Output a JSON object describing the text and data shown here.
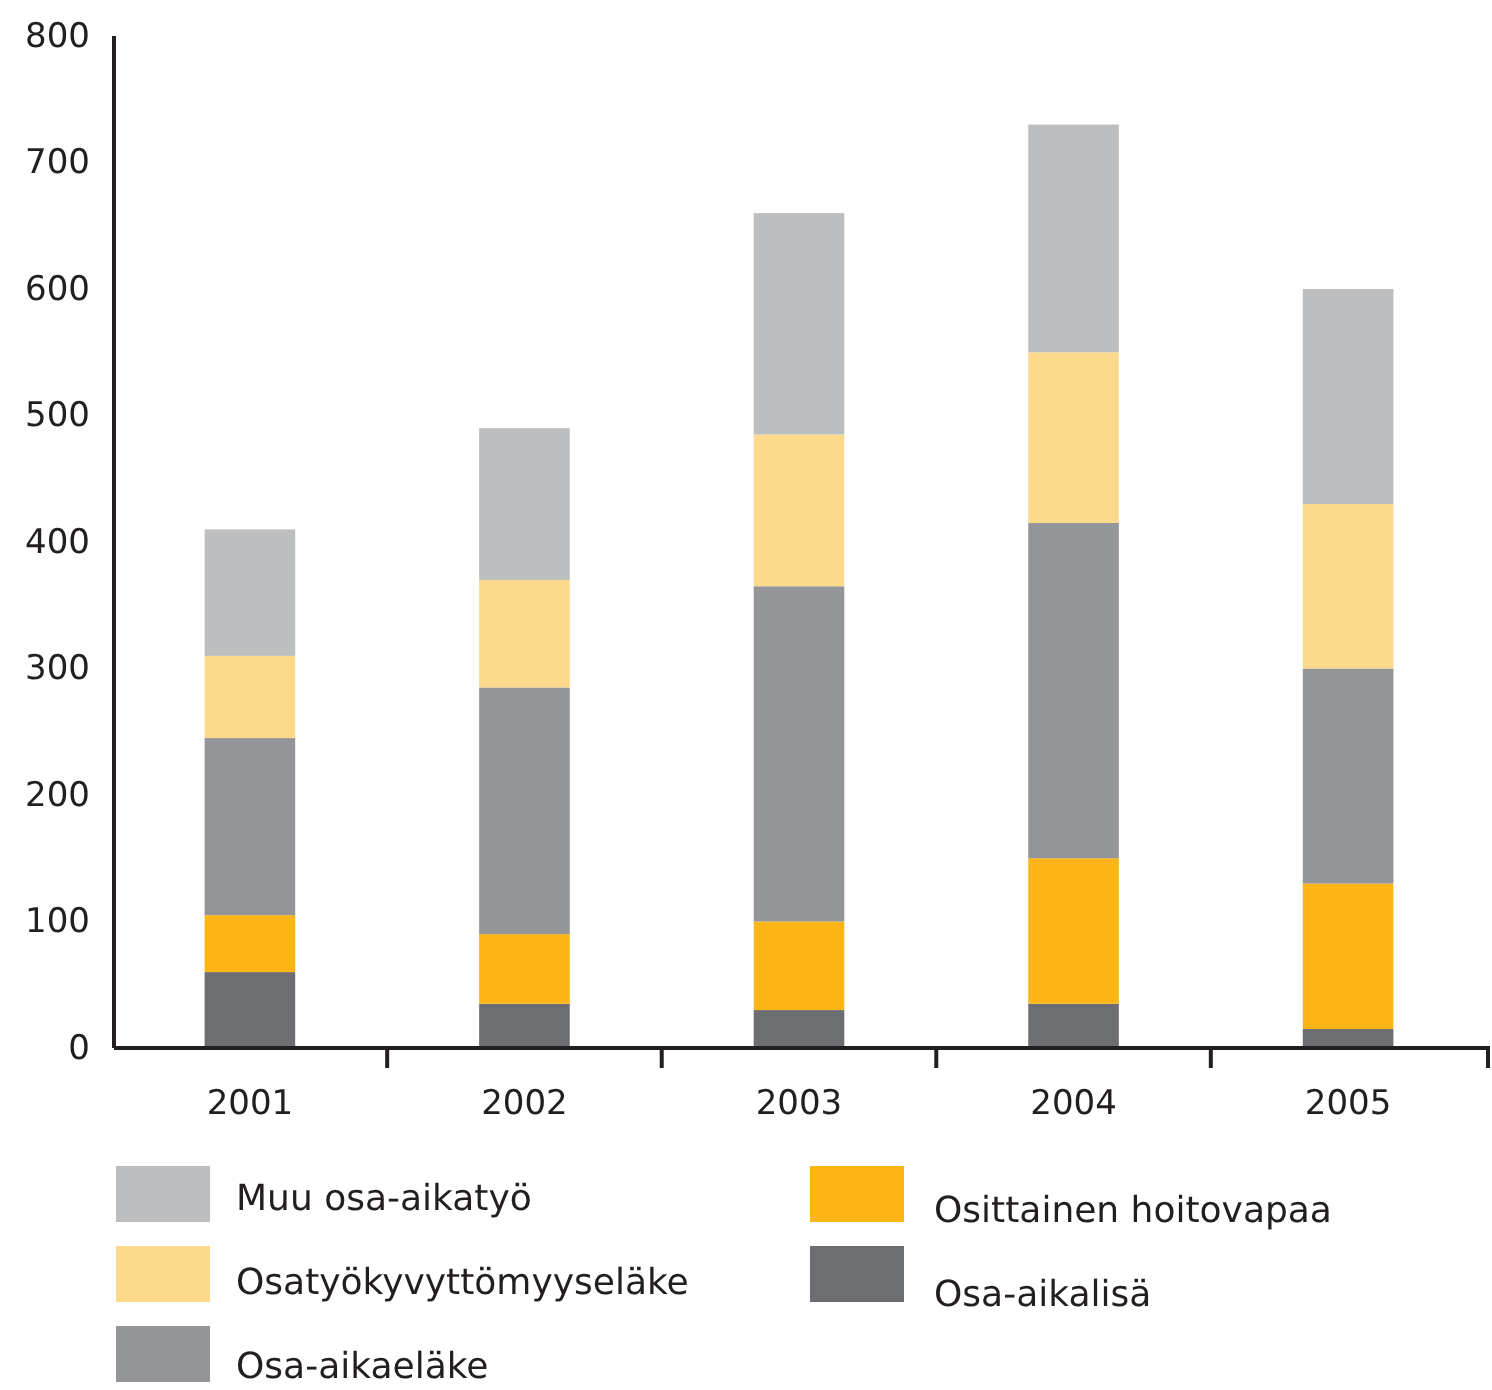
{
  "chart_data": {
    "type": "bar",
    "stacked": true,
    "categories": [
      "2001",
      "2002",
      "2003",
      "2004",
      "2005"
    ],
    "series": [
      {
        "name": "Osa-aikalisä",
        "color": "#6d6e71",
        "values": [
          60,
          35,
          30,
          35,
          15
        ]
      },
      {
        "name": "Osittainen hoitovapaa",
        "color": "#fbb516",
        "values": [
          45,
          55,
          70,
          115,
          115
        ]
      },
      {
        "name": "Osa-aikaeläke",
        "color": "#939598",
        "values": [
          140,
          195,
          265,
          265,
          170
        ]
      },
      {
        "name": "Osatyökyvyttömyyseläke",
        "color": "#fdd98b",
        "values": [
          65,
          85,
          120,
          135,
          130
        ]
      },
      {
        "name": "Muu osa-aikatyö",
        "color": "#bcbec0",
        "values": [
          100,
          120,
          175,
          180,
          170
        ]
      }
    ],
    "ylim": [
      0,
      800
    ],
    "yticks": [
      0,
      100,
      200,
      300,
      400,
      500,
      600,
      700,
      800
    ],
    "grid": false,
    "legend": "bottom"
  }
}
